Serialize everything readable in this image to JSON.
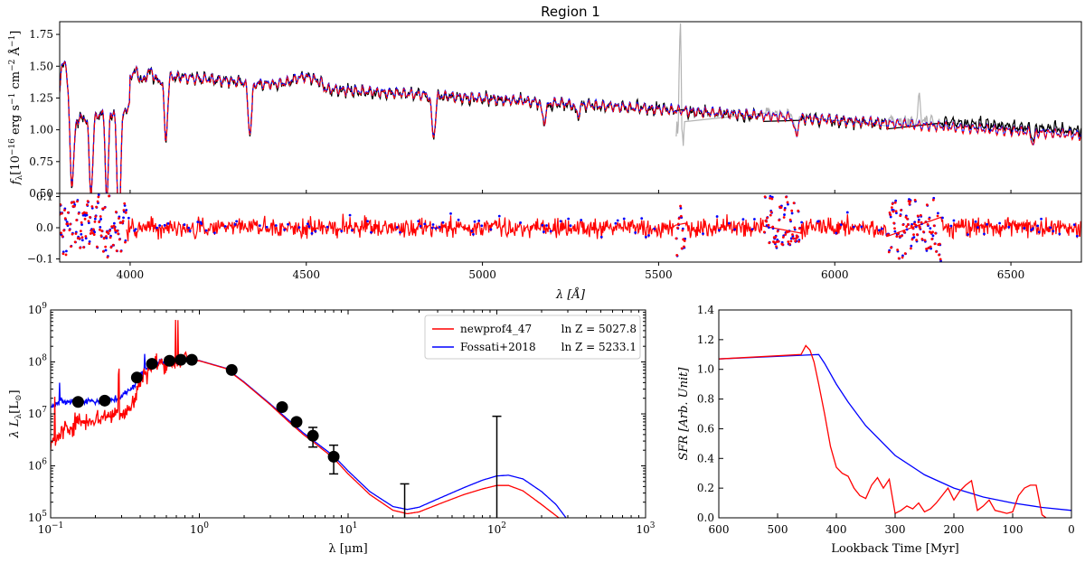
{
  "chart_data": [
    {
      "id": "spectrum",
      "type": "line",
      "title": "Region 1",
      "ylabel": "f_λ[10^-16 erg s^-1 cm^-2 Å^-1]",
      "xlim": [
        3800,
        6700
      ],
      "ylim": [
        0.5,
        1.85
      ],
      "yticks": [
        "0.50",
        "0.75",
        "1.00",
        "1.25",
        "1.50",
        "1.75"
      ],
      "series": [
        {
          "name": "observed",
          "color": "#000000"
        },
        {
          "name": "masked",
          "color": "#b3b3b3"
        },
        {
          "name": "newprof4_47 model",
          "color": "#ff0000"
        },
        {
          "name": "Fossati+2018 model",
          "color": "#0000ff"
        }
      ],
      "absorption_lines": [
        3835,
        3889,
        3934,
        3968,
        4101,
        4340,
        4861,
        5175,
        5270,
        5890,
        6563
      ],
      "masked_regions": [
        [
          5550,
          5575
        ],
        [
          5800,
          5900
        ],
        [
          6150,
          6300
        ]
      ]
    },
    {
      "id": "residuals",
      "type": "scatter",
      "xlabel": "λ [Å]",
      "xlim": [
        3800,
        6700
      ],
      "ylim": [
        -0.11,
        0.11
      ],
      "xticks": [
        "4000",
        "4500",
        "5000",
        "5500",
        "6000",
        "6500"
      ],
      "yticks": [
        "−0.1",
        "0.0",
        "0.1"
      ],
      "series": [
        {
          "name": "newprof4_47 residual",
          "color": "#ff0000"
        },
        {
          "name": "Fossati+2018 residual",
          "color": "#0000ff"
        }
      ]
    },
    {
      "id": "sed",
      "type": "line",
      "xlabel": "λ [μm]",
      "ylabel": "λ L_λ[L_⊙]",
      "xscale": "log",
      "yscale": "log",
      "xlim": [
        0.1,
        1000
      ],
      "ylim": [
        100000,
        1000000000
      ],
      "xtick_exponents": [
        "−1",
        "0",
        "1",
        "2",
        "3"
      ],
      "ytick_exponents": [
        "5",
        "6",
        "7",
        "8",
        "9"
      ],
      "legend_position": "top-right",
      "legend": [
        {
          "label": "newprof4_47",
          "stat": "ln Z = 5027.8",
          "color": "#ff0000"
        },
        {
          "label": "Fossati+2018",
          "stat": "ln Z = 5233.1",
          "color": "#0000ff"
        }
      ],
      "photometry": [
        {
          "x": 0.153,
          "y": 17000000
        },
        {
          "x": 0.231,
          "y": 18000000
        },
        {
          "x": 0.38,
          "y": 50000000
        },
        {
          "x": 0.48,
          "y": 92000000
        },
        {
          "x": 0.63,
          "y": 105000000
        },
        {
          "x": 0.75,
          "y": 110000000
        },
        {
          "x": 0.89,
          "y": 110000000
        },
        {
          "x": 1.65,
          "y": 70000000
        },
        {
          "x": 3.6,
          "y": 13500000
        },
        {
          "x": 4.5,
          "y": 7000000
        },
        {
          "x": 5.8,
          "y": 3800000,
          "ylo": 2300000,
          "yhi": 5500000
        },
        {
          "x": 8.0,
          "y": 1500000,
          "ylo": 700000,
          "yhi": 2500000
        }
      ],
      "upper_limits": [
        {
          "x": 24,
          "ylo": 100000,
          "yhi": 450000
        },
        {
          "x": 100,
          "ylo": 100000,
          "yhi": 9000000
        }
      ],
      "series": [
        {
          "name": "newprof4_47",
          "color": "#ff0000",
          "x": [
            0.1,
            0.12,
            0.15,
            0.2,
            0.25,
            0.3,
            0.35,
            0.4,
            0.45,
            0.5,
            0.6,
            0.8,
            1.0,
            1.5,
            2.0,
            3.0,
            4.0,
            5.0,
            6.0,
            8.0,
            10,
            14,
            20,
            25,
            30,
            40,
            60,
            80,
            100,
            120,
            150,
            200,
            250,
            290
          ],
          "y": [
            2500000,
            4500000,
            7000000,
            8000000,
            9500000,
            11000000,
            13000000,
            42000000,
            70000000,
            90000000,
            100000000,
            108000000,
            105000000,
            75000000,
            40000000,
            15000000,
            7000000,
            4000000,
            2700000,
            1400000,
            700000,
            280000,
            140000,
            120000,
            130000,
            180000,
            280000,
            360000,
            420000,
            420000,
            330000,
            180000,
            110000,
            80000
          ]
        },
        {
          "name": "Fossati+2018",
          "color": "#0000ff",
          "x": [
            0.1,
            0.12,
            0.15,
            0.2,
            0.25,
            0.3,
            0.35,
            0.4,
            0.45,
            0.5,
            0.6,
            0.8,
            1.0,
            1.5,
            2.0,
            3.0,
            4.0,
            5.0,
            6.0,
            8.0,
            10,
            14,
            20,
            25,
            30,
            40,
            60,
            80,
            100,
            120,
            150,
            200,
            250,
            300
          ],
          "y": [
            15000000,
            17000000,
            17500000,
            18000000,
            18000000,
            22000000,
            30000000,
            55000000,
            80000000,
            95000000,
            103000000,
            110000000,
            106000000,
            76000000,
            41000000,
            15500000,
            7500000,
            4300000,
            2900000,
            1550000,
            800000,
            320000,
            165000,
            145000,
            160000,
            230000,
            380000,
            530000,
            640000,
            660000,
            560000,
            320000,
            180000,
            90000
          ]
        }
      ]
    },
    {
      "id": "sfh",
      "type": "line",
      "xlabel": "Lookback Time [Myr]",
      "ylabel": "SFR [Arb. Unit]",
      "xlim": [
        600,
        0
      ],
      "ylim": [
        0,
        1.4
      ],
      "xticks": [
        "600",
        "500",
        "400",
        "300",
        "200",
        "100",
        "0"
      ],
      "yticks": [
        "0.0",
        "0.2",
        "0.4",
        "0.6",
        "0.8",
        "1.0",
        "1.2",
        "1.4"
      ],
      "series": [
        {
          "name": "newprof4_47",
          "color": "#ff0000",
          "x": [
            600,
            460,
            452,
            445,
            438,
            430,
            420,
            410,
            400,
            390,
            380,
            370,
            360,
            350,
            340,
            330,
            320,
            310,
            300,
            290,
            280,
            270,
            260,
            250,
            240,
            230,
            220,
            210,
            200,
            190,
            180,
            170,
            160,
            150,
            140,
            130,
            120,
            110,
            100,
            90,
            80,
            70,
            60,
            50,
            43
          ],
          "y": [
            1.07,
            1.1,
            1.16,
            1.13,
            1.05,
            0.9,
            0.7,
            0.48,
            0.34,
            0.3,
            0.28,
            0.2,
            0.15,
            0.13,
            0.22,
            0.27,
            0.2,
            0.26,
            0.03,
            0.05,
            0.08,
            0.06,
            0.1,
            0.04,
            0.06,
            0.1,
            0.15,
            0.2,
            0.12,
            0.18,
            0.22,
            0.25,
            0.05,
            0.08,
            0.12,
            0.05,
            0.04,
            0.03,
            0.04,
            0.15,
            0.2,
            0.22,
            0.22,
            0.02,
            0.0
          ]
        },
        {
          "name": "Fossati+2018",
          "color": "#0000ff",
          "x": [
            600,
            430,
            420,
            400,
            380,
            350,
            300,
            250,
            200,
            150,
            100,
            50,
            0
          ],
          "y": [
            1.07,
            1.1,
            1.04,
            0.9,
            0.78,
            0.62,
            0.42,
            0.29,
            0.2,
            0.14,
            0.1,
            0.07,
            0.05
          ]
        }
      ]
    }
  ]
}
